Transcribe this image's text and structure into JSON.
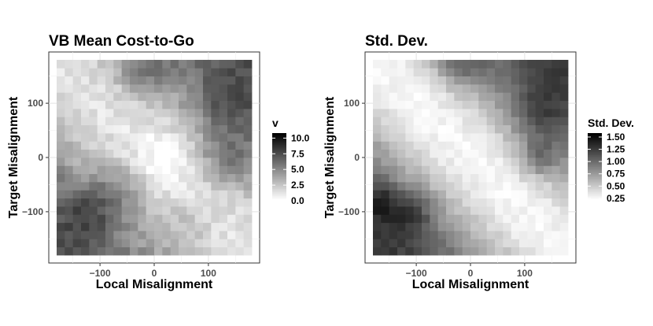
{
  "chart_data": [
    {
      "type": "heatmap",
      "title": "VB Mean Cost-to-Go",
      "xlabel": "Local Misalignment",
      "ylabel": "Target Misalignment",
      "xlim": [
        -180,
        180
      ],
      "ylim": [
        -180,
        180
      ],
      "x_ticks": [
        -100,
        0,
        100
      ],
      "y_ticks": [
        -100,
        0,
        100
      ],
      "x_tick_labels": [
        "−100",
        "0",
        "100"
      ],
      "y_tick_labels": [
        "−100",
        "0",
        "100"
      ],
      "grid": true,
      "colormap": "white-to-black",
      "color_low": "#ffffff",
      "color_high": "#000000",
      "legend": {
        "title": "v",
        "placement": "right",
        "range": [
          0,
          10.8
        ],
        "ticks": [
          0.0,
          2.5,
          5.0,
          7.5,
          10.0
        ],
        "tick_labels": [
          "0.0",
          "2.5",
          "5.0",
          "7.5",
          "10.0"
        ]
      },
      "grid_cells": 24,
      "value_model": {
        "base": 1.2,
        "diagonal_gain": 7.0,
        "diagonal_width": 120,
        "blobs": [
          {
            "x": -20,
            "y": 160,
            "amp": 2.5,
            "r": 35
          },
          {
            "x": 130,
            "y": 100,
            "amp": 2.0,
            "r": 40
          },
          {
            "x": 130,
            "y": 0,
            "amp": 2.5,
            "r": 35
          },
          {
            "x": -120,
            "y": -100,
            "amp": 2.5,
            "r": 35
          },
          {
            "x": -60,
            "y": -60,
            "amp": 2.0,
            "r": 35
          },
          {
            "x": 20,
            "y": 0,
            "amp": -1.5,
            "r": 40
          },
          {
            "x": 60,
            "y": -120,
            "amp": 1.0,
            "r": 30
          }
        ],
        "noise": 1.4
      }
    },
    {
      "type": "heatmap",
      "title": "Std. Dev.",
      "xlabel": "Local Misalignment",
      "ylabel": "Target Misalignment",
      "xlim": [
        -180,
        180
      ],
      "ylim": [
        -180,
        180
      ],
      "x_ticks": [
        -100,
        0,
        100
      ],
      "y_ticks": [
        -100,
        0,
        100
      ],
      "x_tick_labels": [
        "−100",
        "0",
        "100"
      ],
      "y_tick_labels": [
        "−100",
        "0",
        "100"
      ],
      "grid": true,
      "colormap": "white-to-black",
      "color_low": "#ffffff",
      "color_high": "#000000",
      "legend": {
        "title": "Std. Dev.",
        "placement": "right",
        "range": [
          0.2,
          1.58
        ],
        "ticks": [
          0.25,
          0.5,
          0.75,
          1.0,
          1.25,
          1.5
        ],
        "tick_labels": [
          "0.25",
          "0.50",
          "0.75",
          "1.00",
          "1.25",
          "1.50"
        ]
      },
      "grid_cells": 24,
      "value_model": {
        "base": 0.25,
        "diagonal_gain": 1.15,
        "diagonal_width": 110,
        "blobs": [
          {
            "x": -20,
            "y": 170,
            "amp": 0.35,
            "r": 30
          },
          {
            "x": 120,
            "y": 80,
            "amp": 0.3,
            "r": 35
          },
          {
            "x": 125,
            "y": 0,
            "amp": 0.4,
            "r": 25
          },
          {
            "x": -110,
            "y": -100,
            "amp": 0.35,
            "r": 30
          },
          {
            "x": -170,
            "y": -80,
            "amp": 0.3,
            "r": 25
          }
        ],
        "noise": 0.12
      }
    }
  ]
}
